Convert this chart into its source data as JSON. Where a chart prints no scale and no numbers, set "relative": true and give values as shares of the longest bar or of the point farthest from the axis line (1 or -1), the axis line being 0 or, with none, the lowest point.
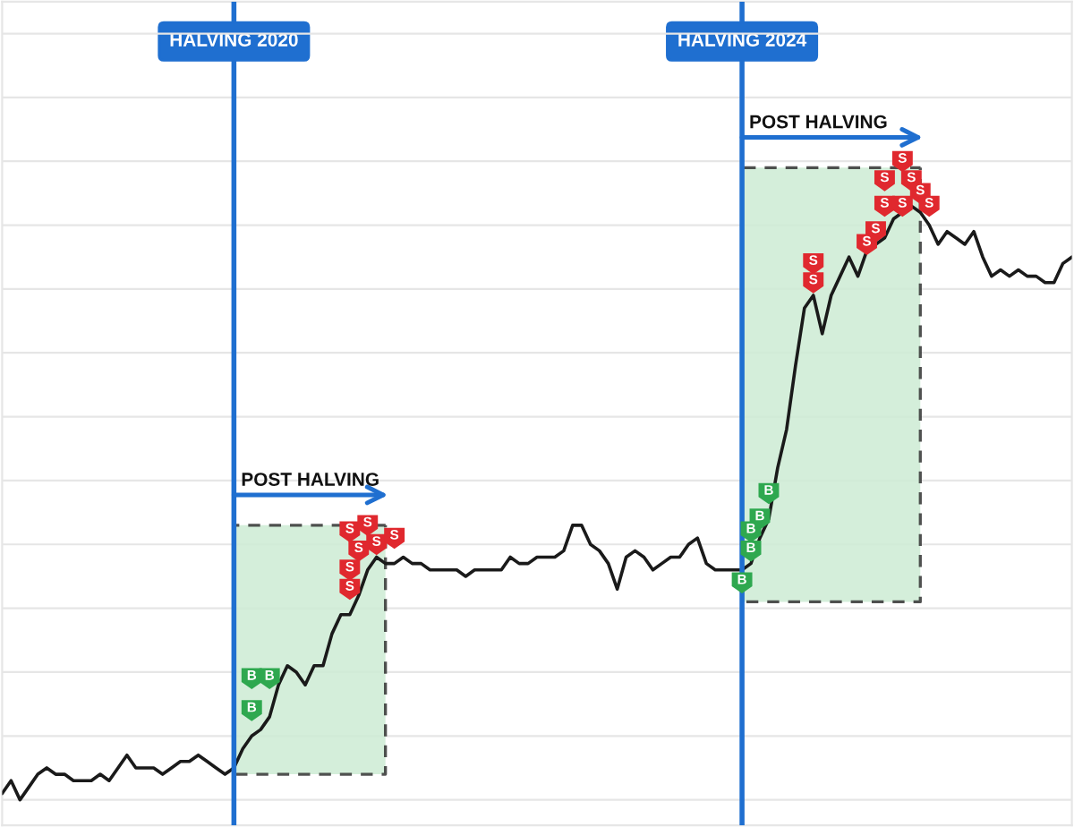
{
  "chart_data": {
    "type": "line",
    "relative": true,
    "grid": true,
    "categories": [
      null,
      null,
      null,
      null,
      null,
      null,
      null,
      null,
      null,
      null,
      null,
      null,
      null,
      null,
      null,
      null,
      null,
      null,
      null,
      null,
      null,
      null,
      null,
      null,
      null,
      null,
      "HALVING 2020",
      null,
      null,
      null,
      null,
      null,
      null,
      null,
      null,
      null,
      null,
      null,
      null,
      null,
      null,
      null,
      null,
      null,
      null,
      null,
      null,
      null,
      null,
      null,
      null,
      null,
      null,
      null,
      null,
      null,
      null,
      null,
      null,
      null,
      null,
      null,
      null,
      null,
      null,
      null,
      null,
      null,
      null,
      null,
      null,
      null,
      null,
      null,
      null,
      null,
      null,
      null,
      null,
      null,
      null,
      null,
      null,
      "HALVING 2024",
      null,
      null,
      null,
      null,
      null,
      null,
      null,
      null,
      null,
      null,
      null,
      null,
      null,
      null,
      null,
      null,
      null,
      null,
      null,
      null,
      null,
      null,
      null,
      null,
      null,
      null,
      null,
      null,
      null,
      null,
      null,
      null,
      null,
      null,
      null,
      null,
      null
    ],
    "series": [
      {
        "color": "#1a1a1a",
        "values": [
          0.01,
          0.03,
          0,
          0.02,
          0.04,
          0.05,
          0.04,
          0.04,
          0.03,
          0.03,
          0.03,
          0.04,
          0.03,
          0.05,
          0.07,
          0.05,
          0.05,
          0.05,
          0.04,
          0.05,
          0.06,
          0.06,
          0.07,
          0.06,
          0.05,
          0.04,
          0.05,
          0.08,
          0.1,
          0.11,
          0.13,
          0.18,
          0.21,
          0.2,
          0.18,
          0.21,
          0.21,
          0.26,
          0.29,
          0.29,
          0.32,
          0.36,
          0.38,
          0.37,
          0.37,
          0.38,
          0.37,
          0.37,
          0.36,
          0.36,
          0.36,
          0.36,
          0.35,
          0.36,
          0.36,
          0.36,
          0.36,
          0.38,
          0.37,
          0.37,
          0.38,
          0.38,
          0.38,
          0.39,
          0.43,
          0.43,
          0.4,
          0.39,
          0.37,
          0.33,
          0.38,
          0.39,
          0.38,
          0.36,
          0.37,
          0.38,
          0.38,
          0.4,
          0.41,
          0.37,
          0.36,
          0.36,
          0.36,
          0.36,
          0.37,
          0.41,
          0.44,
          0.52,
          0.58,
          0.68,
          0.77,
          0.79,
          0.73,
          0.79,
          0.82,
          0.85,
          0.82,
          0.86,
          0.87,
          0.88,
          0.91,
          0.92,
          0.93,
          0.92,
          0.9,
          0.87,
          0.89,
          0.88,
          0.87,
          0.89,
          0.85,
          0.82,
          0.83,
          0.82,
          0.83,
          0.82,
          0.82,
          0.81,
          0.81,
          0.84,
          0.85
        ],
        "upper": [
          null,
          null,
          null,
          null,
          null,
          null,
          null,
          null,
          null,
          null,
          null,
          null,
          null,
          null,
          null,
          null,
          null,
          null,
          null,
          null,
          null,
          null,
          null,
          null,
          null,
          null,
          0.43,
          0.43,
          0.43,
          0.43,
          0.43,
          0.43,
          0.43,
          0.43,
          0.43,
          0.43,
          0.43,
          0.43,
          0.43,
          0.43,
          0.43,
          0.43,
          0.43,
          0.43,
          null,
          null,
          null,
          null,
          null,
          null,
          null,
          null,
          null,
          null,
          null,
          null,
          null,
          null,
          null,
          null,
          null,
          null,
          null,
          null,
          null,
          null,
          null,
          null,
          null,
          null,
          null,
          null,
          null,
          null,
          null,
          null,
          null,
          null,
          null,
          null,
          null,
          null,
          null,
          0.99,
          0.99,
          0.99,
          0.99,
          0.99,
          0.99,
          0.99,
          0.99,
          0.99,
          0.99,
          0.99,
          0.99,
          0.99,
          0.99,
          0.99,
          0.99,
          0.99,
          0.99,
          0.99,
          0.99,
          0.99,
          null,
          null,
          null,
          null,
          null,
          null,
          null,
          null,
          null,
          null,
          null,
          null,
          null,
          null,
          null,
          null,
          null
        ],
        "lower": [
          null,
          null,
          null,
          null,
          null,
          null,
          null,
          null,
          null,
          null,
          null,
          null,
          null,
          null,
          null,
          null,
          null,
          null,
          null,
          null,
          null,
          null,
          null,
          null,
          null,
          null,
          0.04,
          0.04,
          0.04,
          0.04,
          0.04,
          0.04,
          0.04,
          0.04,
          0.04,
          0.04,
          0.04,
          0.04,
          0.04,
          0.04,
          0.04,
          0.04,
          0.04,
          0.04,
          null,
          null,
          null,
          null,
          null,
          null,
          null,
          null,
          null,
          null,
          null,
          null,
          null,
          null,
          null,
          null,
          null,
          null,
          null,
          null,
          null,
          null,
          null,
          null,
          null,
          null,
          null,
          null,
          null,
          null,
          null,
          null,
          null,
          null,
          null,
          null,
          null,
          null,
          null,
          0.31,
          0.31,
          0.31,
          0.31,
          0.31,
          0.31,
          0.31,
          0.31,
          0.31,
          0.31,
          0.31,
          0.31,
          0.31,
          0.31,
          0.31,
          0.31,
          0.31,
          0.31,
          0.31,
          0.31,
          0.31,
          null,
          null,
          null,
          null,
          null,
          null,
          null,
          null,
          null,
          null,
          null,
          null,
          null,
          null,
          null,
          null,
          null
        ]
      },
      {
        "type": "scatter",
        "name": "B",
        "color": "#2ea84f",
        "values": [
          null,
          null,
          null,
          null,
          null,
          null,
          null,
          null,
          null,
          null,
          null,
          null,
          null,
          null,
          null,
          null,
          null,
          null,
          null,
          null,
          null,
          null,
          null,
          null,
          null,
          null,
          null,
          null,
          0.19,
          null,
          0.19,
          null,
          null,
          null,
          null,
          null,
          null,
          null,
          null,
          null,
          null,
          null,
          null,
          null,
          null,
          null,
          null,
          null,
          null,
          null,
          null,
          null,
          null,
          null,
          null,
          null,
          null,
          null,
          null,
          null,
          null,
          null,
          null,
          null,
          null,
          null,
          null,
          null,
          null,
          null,
          null,
          null,
          null,
          null,
          null,
          null,
          null,
          null,
          null,
          null,
          null,
          null,
          null,
          0.34,
          0.39,
          0.44,
          0.48,
          null,
          null,
          null,
          null,
          null,
          null,
          null,
          null,
          null,
          null,
          null,
          null,
          null,
          null,
          null,
          null,
          null,
          null,
          null,
          null,
          null,
          null,
          null,
          null,
          null,
          null,
          null,
          null,
          null,
          null,
          null,
          null,
          null,
          null
        ]
      },
      {
        "type": "scatter",
        "name": "B",
        "color": "#2ea84f",
        "values": [
          null,
          null,
          null,
          null,
          null,
          null,
          null,
          null,
          null,
          null,
          null,
          null,
          null,
          null,
          null,
          null,
          null,
          null,
          null,
          null,
          null,
          null,
          null,
          null,
          null,
          null,
          null,
          null,
          0.14,
          null,
          null,
          null,
          null,
          null,
          null,
          null,
          null,
          null,
          null,
          null,
          null,
          null,
          null,
          null,
          null,
          null,
          null,
          null,
          null,
          null,
          null,
          null,
          null,
          null,
          null,
          null,
          null,
          null,
          null,
          null,
          null,
          null,
          null,
          null,
          null,
          null,
          null,
          null,
          null,
          null,
          null,
          null,
          null,
          null,
          null,
          null,
          null,
          null,
          null,
          null,
          null,
          null,
          null,
          null,
          0.42,
          null,
          null,
          null,
          null,
          null,
          null,
          null,
          null,
          null,
          null,
          null,
          null,
          null,
          null,
          null,
          null,
          null,
          null,
          null,
          null,
          null,
          null,
          null,
          null,
          null,
          null,
          null,
          null,
          null,
          null,
          null,
          null,
          null,
          null,
          null,
          null
        ]
      },
      {
        "type": "scatter",
        "name": "S",
        "color": "#e0282e",
        "values": [
          null,
          null,
          null,
          null,
          null,
          null,
          null,
          null,
          null,
          null,
          null,
          null,
          null,
          null,
          null,
          null,
          null,
          null,
          null,
          null,
          null,
          null,
          null,
          null,
          null,
          null,
          null,
          null,
          null,
          null,
          null,
          null,
          null,
          null,
          null,
          null,
          null,
          null,
          null,
          0.42,
          null,
          0.43,
          0.4,
          null,
          0.41,
          null,
          null,
          null,
          null,
          null,
          null,
          null,
          null,
          null,
          null,
          null,
          null,
          null,
          null,
          null,
          null,
          null,
          null,
          null,
          null,
          null,
          null,
          null,
          null,
          null,
          null,
          null,
          null,
          null,
          null,
          null,
          null,
          null,
          null,
          null,
          null,
          null,
          null,
          null,
          null,
          null,
          null,
          null,
          null,
          null,
          null,
          0.84,
          null,
          null,
          null,
          null,
          null,
          0.87,
          0.89,
          0.97,
          null,
          1.0,
          null,
          0.95,
          0.93,
          null,
          null,
          null,
          null,
          null,
          null,
          null,
          null,
          null,
          null,
          null,
          null,
          null,
          null,
          null,
          null
        ]
      },
      {
        "type": "scatter",
        "name": "S",
        "color": "#e0282e",
        "values": [
          null,
          null,
          null,
          null,
          null,
          null,
          null,
          null,
          null,
          null,
          null,
          null,
          null,
          null,
          null,
          null,
          null,
          null,
          null,
          null,
          null,
          null,
          null,
          null,
          null,
          null,
          null,
          null,
          null,
          null,
          null,
          null,
          null,
          null,
          null,
          null,
          null,
          null,
          null,
          0.36,
          0.39,
          null,
          null,
          null,
          null,
          null,
          null,
          null,
          null,
          null,
          null,
          null,
          null,
          null,
          null,
          null,
          null,
          null,
          null,
          null,
          null,
          null,
          null,
          null,
          null,
          null,
          null,
          null,
          null,
          null,
          null,
          null,
          null,
          null,
          null,
          null,
          null,
          null,
          null,
          null,
          null,
          null,
          null,
          null,
          null,
          null,
          null,
          null,
          null,
          null,
          null,
          0.81,
          null,
          null,
          null,
          null,
          null,
          null,
          null,
          0.93,
          null,
          0.93,
          0.97,
          null,
          null,
          null,
          null,
          null,
          null,
          null,
          null,
          null,
          null,
          null,
          null,
          null,
          null,
          null,
          null,
          null,
          null
        ]
      },
      {
        "type": "scatter",
        "name": "S",
        "color": "#e0282e",
        "values": [
          null,
          null,
          null,
          null,
          null,
          null,
          null,
          null,
          null,
          null,
          null,
          null,
          null,
          null,
          null,
          null,
          null,
          null,
          null,
          null,
          null,
          null,
          null,
          null,
          null,
          null,
          null,
          null,
          null,
          null,
          null,
          null,
          null,
          null,
          null,
          null,
          null,
          null,
          null,
          0.33,
          null,
          null,
          null,
          null,
          null,
          null,
          null,
          null,
          null,
          null,
          null,
          null,
          null,
          null,
          null,
          null,
          null,
          null,
          null,
          null,
          null,
          null,
          null,
          null,
          null,
          null,
          null,
          null,
          null,
          null,
          null,
          null,
          null,
          null,
          null,
          null,
          null,
          null,
          null,
          null,
          null,
          null,
          null,
          null,
          null,
          null,
          null,
          null,
          null,
          null,
          null,
          null,
          null,
          null,
          null,
          null,
          null,
          null,
          null,
          null,
          null,
          null,
          null,
          null,
          null,
          null,
          null,
          null,
          null,
          null,
          null,
          null,
          null,
          null,
          null,
          null,
          null,
          null,
          null,
          null,
          null
        ]
      }
    ],
    "ref_lines": [
      {
        "axis": "x",
        "value": "HALVING 2020",
        "color": "#1f6fd0"
      },
      {
        "axis": "x",
        "value": "HALVING 2024",
        "color": "#1f6fd0"
      }
    ],
    "annotations": [
      "POST HALVING",
      "POST HALVING"
    ]
  }
}
